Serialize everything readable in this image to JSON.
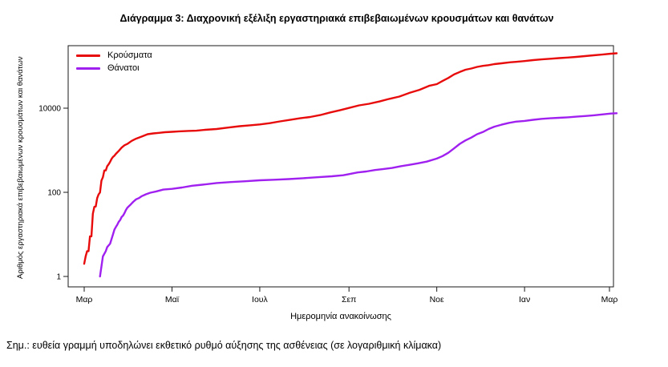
{
  "title": "Διάγραμμα 3: Διαχρονική εξέλιξη εργαστηριακά επιβεβαιωμένων κρουσμάτων και θανάτων",
  "note": "Σημ.: ευθεία γραμμή υποδηλώνει εκθετικό ρυθμό αύξησης της ασθένειας (σε λογαριθμική κλίμακα)",
  "chart_data": {
    "type": "line",
    "title": "Διάγραμμα 3: Διαχρονική εξέλιξη εργαστηριακά επιβεβαιωμένων κρουσμάτων και θανάτων",
    "xlabel": "Ημερομηνία ανακοίνωσης",
    "ylabel": "Αριθμός εργαστηριακά επιβεβαιωμένων κρουσμάτων και θανάτων",
    "y_scale": "log10",
    "ylim": [
      1,
      300000
    ],
    "grid": false,
    "y_ticks": {
      "values": [
        1,
        100,
        10000
      ],
      "labels": [
        "1",
        "100",
        "10000"
      ]
    },
    "x_ticks": {
      "days": [
        0,
        61,
        122,
        184,
        245,
        306,
        365
      ],
      "labels": [
        "Μαρ",
        "Μαϊ",
        "Ιουλ",
        "Σεπ",
        "Νοε",
        "Ιαν",
        "Μαρ"
      ]
    },
    "legend": {
      "position": "top-left"
    },
    "series": [
      {
        "name": "Κρούσματα",
        "color": "#e80b0b",
        "points": [
          [
            0,
            2
          ],
          [
            1,
            3
          ],
          [
            2,
            4
          ],
          [
            3,
            4
          ],
          [
            4,
            9
          ],
          [
            5,
            9
          ],
          [
            6,
            31
          ],
          [
            7,
            45
          ],
          [
            8,
            46
          ],
          [
            9,
            73
          ],
          [
            10,
            89
          ],
          [
            11,
            99
          ],
          [
            12,
            190
          ],
          [
            13,
            228
          ],
          [
            14,
            331
          ],
          [
            15,
            331
          ],
          [
            16,
            418
          ],
          [
            17,
            464
          ],
          [
            18,
            530
          ],
          [
            19,
            624
          ],
          [
            20,
            695
          ],
          [
            21,
            743
          ],
          [
            22,
            821
          ],
          [
            24,
            966
          ],
          [
            26,
            1156
          ],
          [
            28,
            1314
          ],
          [
            30,
            1415
          ],
          [
            33,
            1673
          ],
          [
            36,
            1884
          ],
          [
            40,
            2114
          ],
          [
            44,
            2401
          ],
          [
            48,
            2517
          ],
          [
            52,
            2591
          ],
          [
            56,
            2678
          ],
          [
            61,
            2744
          ],
          [
            66,
            2810
          ],
          [
            72,
            2878
          ],
          [
            78,
            2918
          ],
          [
            84,
            3058
          ],
          [
            92,
            3203
          ],
          [
            100,
            3458
          ],
          [
            108,
            3732
          ],
          [
            115,
            3910
          ],
          [
            122,
            4110
          ],
          [
            129,
            4401
          ],
          [
            136,
            4855
          ],
          [
            143,
            5270
          ],
          [
            150,
            5749
          ],
          [
            157,
            6177
          ],
          [
            164,
            6858
          ],
          [
            171,
            7934
          ],
          [
            178,
            8987
          ],
          [
            184,
            10134
          ],
          [
            191,
            11663
          ],
          [
            198,
            12734
          ],
          [
            205,
            14400
          ],
          [
            212,
            16627
          ],
          [
            219,
            18886
          ],
          [
            226,
            23060
          ],
          [
            233,
            27334
          ],
          [
            240,
            34299
          ],
          [
            245,
            37196
          ],
          [
            249,
            44246
          ],
          [
            253,
            52254
          ],
          [
            257,
            63321
          ],
          [
            261,
            72510
          ],
          [
            265,
            82034
          ],
          [
            269,
            87812
          ],
          [
            273,
            95683
          ],
          [
            277,
            101287
          ],
          [
            281,
            105271
          ],
          [
            285,
            111537
          ],
          [
            290,
            116721
          ],
          [
            295,
            122111
          ],
          [
            300,
            126372
          ],
          [
            306,
            131856
          ],
          [
            312,
            138850
          ],
          [
            318,
            144738
          ],
          [
            324,
            149807
          ],
          [
            330,
            154796
          ],
          [
            336,
            159866
          ],
          [
            342,
            165823
          ],
          [
            348,
            172824
          ],
          [
            354,
            180672
          ],
          [
            360,
            188201
          ],
          [
            366,
            197279
          ],
          [
            370,
            202000
          ]
        ]
      },
      {
        "name": "Θάνατοι",
        "color": "#a020f0",
        "points": [
          [
            11,
            1
          ],
          [
            13,
            3
          ],
          [
            15,
            4
          ],
          [
            16,
            5
          ],
          [
            18,
            6
          ],
          [
            20,
            10
          ],
          [
            21,
            13
          ],
          [
            22,
            15
          ],
          [
            23,
            17
          ],
          [
            24,
            20
          ],
          [
            25,
            22
          ],
          [
            26,
            26
          ],
          [
            27,
            28
          ],
          [
            28,
            32
          ],
          [
            29,
            38
          ],
          [
            30,
            43
          ],
          [
            32,
            50
          ],
          [
            34,
            59
          ],
          [
            36,
            68
          ],
          [
            38,
            73
          ],
          [
            40,
            81
          ],
          [
            43,
            90
          ],
          [
            46,
            98
          ],
          [
            50,
            105
          ],
          [
            55,
            116
          ],
          [
            61,
            121
          ],
          [
            68,
            130
          ],
          [
            75,
            143
          ],
          [
            82,
            152
          ],
          [
            92,
            166
          ],
          [
            102,
            175
          ],
          [
            112,
            183
          ],
          [
            122,
            193
          ],
          [
            132,
            199
          ],
          [
            142,
            206
          ],
          [
            152,
            216
          ],
          [
            162,
            228
          ],
          [
            172,
            240
          ],
          [
            180,
            254
          ],
          [
            184,
            271
          ],
          [
            190,
            297
          ],
          [
            196,
            313
          ],
          [
            202,
            338
          ],
          [
            208,
            359
          ],
          [
            214,
            380
          ],
          [
            220,
            417
          ],
          [
            226,
            451
          ],
          [
            232,
            490
          ],
          [
            238,
            536
          ],
          [
            245,
            635
          ],
          [
            249,
            726
          ],
          [
            253,
            870
          ],
          [
            257,
            1106
          ],
          [
            261,
            1419
          ],
          [
            265,
            1714
          ],
          [
            269,
            2001
          ],
          [
            273,
            2406
          ],
          [
            277,
            2706
          ],
          [
            281,
            3194
          ],
          [
            285,
            3625
          ],
          [
            290,
            4044
          ],
          [
            295,
            4457
          ],
          [
            300,
            4788
          ],
          [
            306,
            4977
          ],
          [
            312,
            5302
          ],
          [
            318,
            5570
          ],
          [
            324,
            5764
          ],
          [
            330,
            5903
          ],
          [
            336,
            6063
          ],
          [
            342,
            6272
          ],
          [
            348,
            6504
          ],
          [
            354,
            6758
          ],
          [
            360,
            7091
          ],
          [
            366,
            7462
          ],
          [
            370,
            7582
          ]
        ]
      }
    ]
  }
}
